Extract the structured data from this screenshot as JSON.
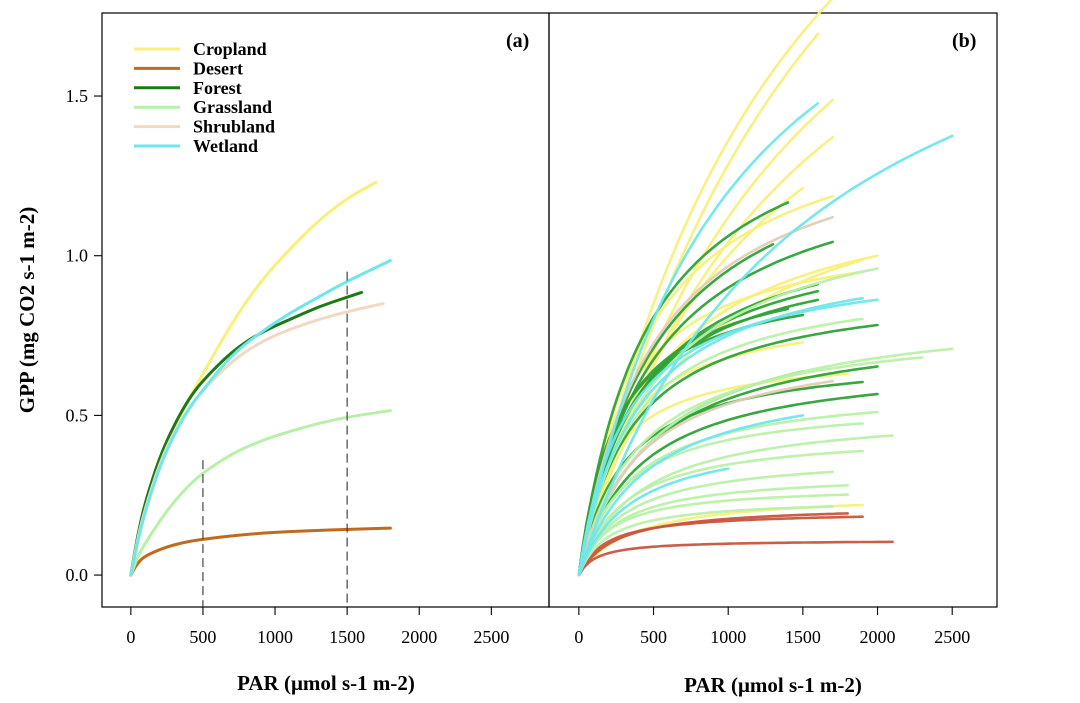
{
  "chart_data": [
    {
      "type": "line",
      "panel_label": "(a)",
      "ylabel": "GPP (mg CO2 s-1 m-2)",
      "xlabel": "PAR (μmol s-1 m-2)",
      "xlim": [
        -200,
        2900
      ],
      "ylim": [
        -0.1,
        1.76
      ],
      "x_ticks": [
        0,
        500,
        1000,
        1500,
        2000,
        2500
      ],
      "y_ticks": [
        0.0,
        0.5,
        1.0,
        1.5
      ],
      "legend_position": "top-left",
      "legend": [
        "Cropland",
        "Desert",
        "Forest",
        "Grassland",
        "Shrubland",
        "Wetland"
      ],
      "series": [
        {
          "name": "Cropland",
          "color": "#f7f07a",
          "x": [
            0,
            50,
            100,
            200,
            300,
            400,
            500,
            700,
            900,
            1100,
            1300,
            1500,
            1700
          ],
          "y": [
            0,
            0.12,
            0.21,
            0.35,
            0.46,
            0.55,
            0.63,
            0.79,
            0.92,
            1.02,
            1.11,
            1.18,
            1.23
          ]
        },
        {
          "name": "Desert",
          "color": "#c26a1c",
          "x": [
            0,
            50,
            100,
            200,
            300,
            400,
            500,
            700,
            900,
            1100,
            1300,
            1500,
            1800
          ],
          "y": [
            0,
            0.04,
            0.06,
            0.08,
            0.095,
            0.105,
            0.112,
            0.123,
            0.131,
            0.136,
            0.14,
            0.143,
            0.147
          ]
        },
        {
          "name": "Forest",
          "color": "#1c7a12",
          "x": [
            0,
            50,
            100,
            200,
            300,
            400,
            500,
            700,
            900,
            1100,
            1300,
            1500,
            1600
          ],
          "y": [
            0,
            0.13,
            0.23,
            0.37,
            0.47,
            0.55,
            0.61,
            0.7,
            0.76,
            0.8,
            0.84,
            0.87,
            0.885
          ]
        },
        {
          "name": "Grassland",
          "color": "#b9f0a8",
          "x": [
            0,
            50,
            100,
            200,
            300,
            400,
            500,
            700,
            900,
            1100,
            1300,
            1500,
            1800
          ],
          "y": [
            0,
            0.06,
            0.1,
            0.17,
            0.23,
            0.28,
            0.32,
            0.38,
            0.42,
            0.45,
            0.475,
            0.495,
            0.515
          ]
        },
        {
          "name": "Shrubland",
          "color": "#f2d9c4",
          "x": [
            0,
            50,
            100,
            200,
            300,
            400,
            500,
            700,
            900,
            1100,
            1300,
            1500,
            1750
          ],
          "y": [
            0,
            0.12,
            0.21,
            0.35,
            0.45,
            0.52,
            0.58,
            0.67,
            0.73,
            0.77,
            0.8,
            0.825,
            0.85
          ]
        },
        {
          "name": "Wetland",
          "color": "#6fe6ec",
          "x": [
            0,
            50,
            100,
            200,
            300,
            400,
            500,
            700,
            900,
            1100,
            1300,
            1500,
            1800
          ],
          "y": [
            0,
            0.11,
            0.2,
            0.34,
            0.44,
            0.52,
            0.58,
            0.69,
            0.76,
            0.82,
            0.87,
            0.92,
            0.985
          ]
        }
      ],
      "reference_lines": [
        {
          "x": 500,
          "y_top": 0.36,
          "style": "dashed"
        },
        {
          "x": 1500,
          "y_top": 0.95,
          "style": "dashed"
        }
      ]
    },
    {
      "type": "line",
      "panel_label": "(b)",
      "xlabel": "PAR (μmol s-1 m-2)",
      "xlim": [
        -200,
        2800
      ],
      "ylim": [
        -0.1,
        1.76
      ],
      "x_ticks": [
        0,
        500,
        1000,
        1500,
        2000,
        2500
      ],
      "note_series": "many site-level light-response curves, colored by land cover",
      "curves": [
        {
          "group": "Cropland",
          "color": "#f7f07a",
          "pmax": 3.6,
          "k": 1800,
          "xmax": 1600
        },
        {
          "group": "Cropland",
          "color": "#f7f07a",
          "pmax": 3.4,
          "k": 1500,
          "xmax": 1700
        },
        {
          "group": "Cropland",
          "color": "#f7f07a",
          "pmax": 2.8,
          "k": 1500,
          "xmax": 1700
        },
        {
          "group": "Cropland",
          "color": "#f7f07a",
          "pmax": 2.5,
          "k": 1400,
          "xmax": 1700
        },
        {
          "group": "Cropland",
          "color": "#f7f07a",
          "pmax": 2.1,
          "k": 1100,
          "xmax": 1500
        },
        {
          "group": "Cropland",
          "color": "#f7f07a",
          "pmax": 1.5,
          "k": 450,
          "xmax": 1700
        },
        {
          "group": "Cropland",
          "color": "#f7f07a",
          "pmax": 1.25,
          "k": 500,
          "xmax": 2000
        },
        {
          "group": "Cropland",
          "color": "#f7f07a",
          "pmax": 1.1,
          "k": 300,
          "xmax": 1900
        },
        {
          "group": "Cropland",
          "color": "#f7f07a",
          "pmax": 1.35,
          "k": 700,
          "xmax": 1900
        },
        {
          "group": "Cropland",
          "color": "#f7f07a",
          "pmax": 0.85,
          "k": 250,
          "xmax": 1500
        },
        {
          "group": "Cropland",
          "color": "#f7f07a",
          "pmax": 0.7,
          "k": 200,
          "xmax": 1800
        },
        {
          "group": "Cropland",
          "color": "#f7f07a",
          "pmax": 0.26,
          "k": 350,
          "xmax": 1900
        },
        {
          "group": "Desert",
          "color": "#c8553e",
          "pmax": 0.2,
          "k": 180,
          "xmax": 1900
        },
        {
          "group": "Desert",
          "color": "#c8553e",
          "pmax": 0.22,
          "k": 250,
          "xmax": 1800
        },
        {
          "group": "Desert",
          "color": "#c8553e",
          "pmax": 0.11,
          "k": 120,
          "xmax": 2100
        },
        {
          "group": "Forest",
          "color": "#2ea236",
          "pmax": 1.55,
          "k": 460,
          "xmax": 1400
        },
        {
          "group": "Forest",
          "color": "#2ea236",
          "pmax": 1.45,
          "k": 520,
          "xmax": 1300
        },
        {
          "group": "Forest",
          "color": "#2ea236",
          "pmax": 1.35,
          "k": 500,
          "xmax": 1700
        },
        {
          "group": "Forest",
          "color": "#2ea236",
          "pmax": 1.15,
          "k": 420,
          "xmax": 1600
        },
        {
          "group": "Forest",
          "color": "#2ea236",
          "pmax": 1.1,
          "k": 380,
          "xmax": 1600
        },
        {
          "group": "Forest",
          "color": "#2ea236",
          "pmax": 1.05,
          "k": 350,
          "xmax": 1600
        },
        {
          "group": "Forest",
          "color": "#2ea236",
          "pmax": 1.0,
          "k": 280,
          "xmax": 1400
        },
        {
          "group": "Forest",
          "color": "#2ea236",
          "pmax": 0.95,
          "k": 250,
          "xmax": 1500
        },
        {
          "group": "Forest",
          "color": "#2ea236",
          "pmax": 0.92,
          "k": 350,
          "xmax": 2000
        },
        {
          "group": "Forest",
          "color": "#2ea236",
          "pmax": 0.85,
          "k": 500,
          "xmax": 1500
        },
        {
          "group": "Forest",
          "color": "#2ea236",
          "pmax": 0.8,
          "k": 450,
          "xmax": 2000
        },
        {
          "group": "Forest",
          "color": "#2ea236",
          "pmax": 0.7,
          "k": 300,
          "xmax": 1900
        },
        {
          "group": "Forest",
          "color": "#2ea236",
          "pmax": 0.68,
          "k": 400,
          "xmax": 2000
        },
        {
          "group": "Grassland",
          "color": "#b9f0a8",
          "pmax": 1.2,
          "k": 500,
          "xmax": 2000
        },
        {
          "group": "Grassland",
          "color": "#b9f0a8",
          "pmax": 0.95,
          "k": 350,
          "xmax": 1900
        },
        {
          "group": "Grassland",
          "color": "#b9f0a8",
          "pmax": 0.85,
          "k": 500,
          "xmax": 2500
        },
        {
          "group": "Grassland",
          "color": "#b9f0a8",
          "pmax": 0.8,
          "k": 400,
          "xmax": 2300
        },
        {
          "group": "Grassland",
          "color": "#b9f0a8",
          "pmax": 0.6,
          "k": 350,
          "xmax": 2000
        },
        {
          "group": "Grassland",
          "color": "#b9f0a8",
          "pmax": 0.55,
          "k": 300,
          "xmax": 1900
        },
        {
          "group": "Grassland",
          "color": "#b9f0a8",
          "pmax": 0.52,
          "k": 400,
          "xmax": 2100
        },
        {
          "group": "Grassland",
          "color": "#b9f0a8",
          "pmax": 0.45,
          "k": 300,
          "xmax": 1900
        },
        {
          "group": "Grassland",
          "color": "#b9f0a8",
          "pmax": 0.38,
          "k": 300,
          "xmax": 1700
        },
        {
          "group": "Grassland",
          "color": "#b9f0a8",
          "pmax": 0.32,
          "k": 250,
          "xmax": 1800
        },
        {
          "group": "Grassland",
          "color": "#b9f0a8",
          "pmax": 0.28,
          "k": 200,
          "xmax": 1800
        },
        {
          "group": "Grassland",
          "color": "#b9f0a8",
          "pmax": 0.24,
          "k": 200,
          "xmax": 1700
        },
        {
          "group": "Shrubland",
          "color": "#e3cdb4",
          "pmax": 1.45,
          "k": 500,
          "xmax": 1700
        },
        {
          "group": "Shrubland",
          "color": "#e3cdb4",
          "pmax": 0.75,
          "k": 400,
          "xmax": 1700
        },
        {
          "group": "Wetland",
          "color": "#6fe6ec",
          "pmax": 2.4,
          "k": 1000,
          "xmax": 1600
        },
        {
          "group": "Wetland",
          "color": "#6fe6ec",
          "pmax": 2.2,
          "k": 1500,
          "xmax": 2500
        },
        {
          "group": "Wetland",
          "color": "#6fe6ec",
          "pmax": 1.05,
          "k": 400,
          "xmax": 1900
        },
        {
          "group": "Wetland",
          "color": "#6fe6ec",
          "pmax": 1.0,
          "k": 320,
          "xmax": 2000
        },
        {
          "group": "Wetland",
          "color": "#6fe6ec",
          "pmax": 0.65,
          "k": 450,
          "xmax": 1500
        },
        {
          "group": "Wetland",
          "color": "#6fe6ec",
          "pmax": 0.45,
          "k": 350,
          "xmax": 1000
        }
      ]
    }
  ]
}
